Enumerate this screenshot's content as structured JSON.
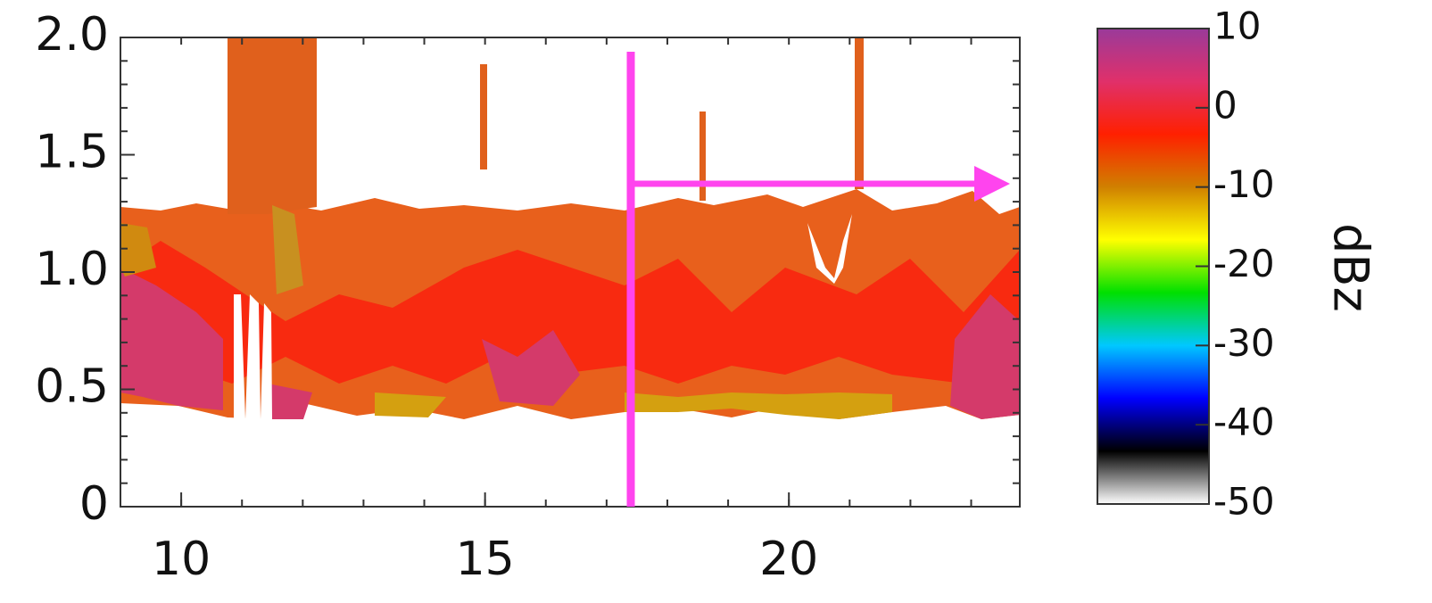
{
  "chart_data": {
    "type": "heatmap",
    "xlim": [
      9,
      23.8
    ],
    "xticks": [
      10,
      15,
      20
    ],
    "ylim": [
      0,
      2.0
    ],
    "yticks": [
      0,
      {
        "value": 0.5,
        "label": "0.5"
      },
      {
        "value": 1.0,
        "label": "1.0"
      },
      {
        "value": 1.5,
        "label": "1.5"
      },
      {
        "value": 2.0,
        "label": "2.0"
      }
    ],
    "colorbar": {
      "label": "dBz",
      "lim": [
        -50,
        10
      ],
      "ticks": [
        -50,
        -40,
        -30,
        -20,
        -10,
        0,
        10
      ],
      "colors": [
        "#ffffff",
        "#000000",
        "#0000ff",
        "#00c8ff",
        "#00e000",
        "#ffff00",
        "#d08000",
        "#ff2000",
        "#e0306a",
        "#9a3a9a"
      ]
    }
  }
}
